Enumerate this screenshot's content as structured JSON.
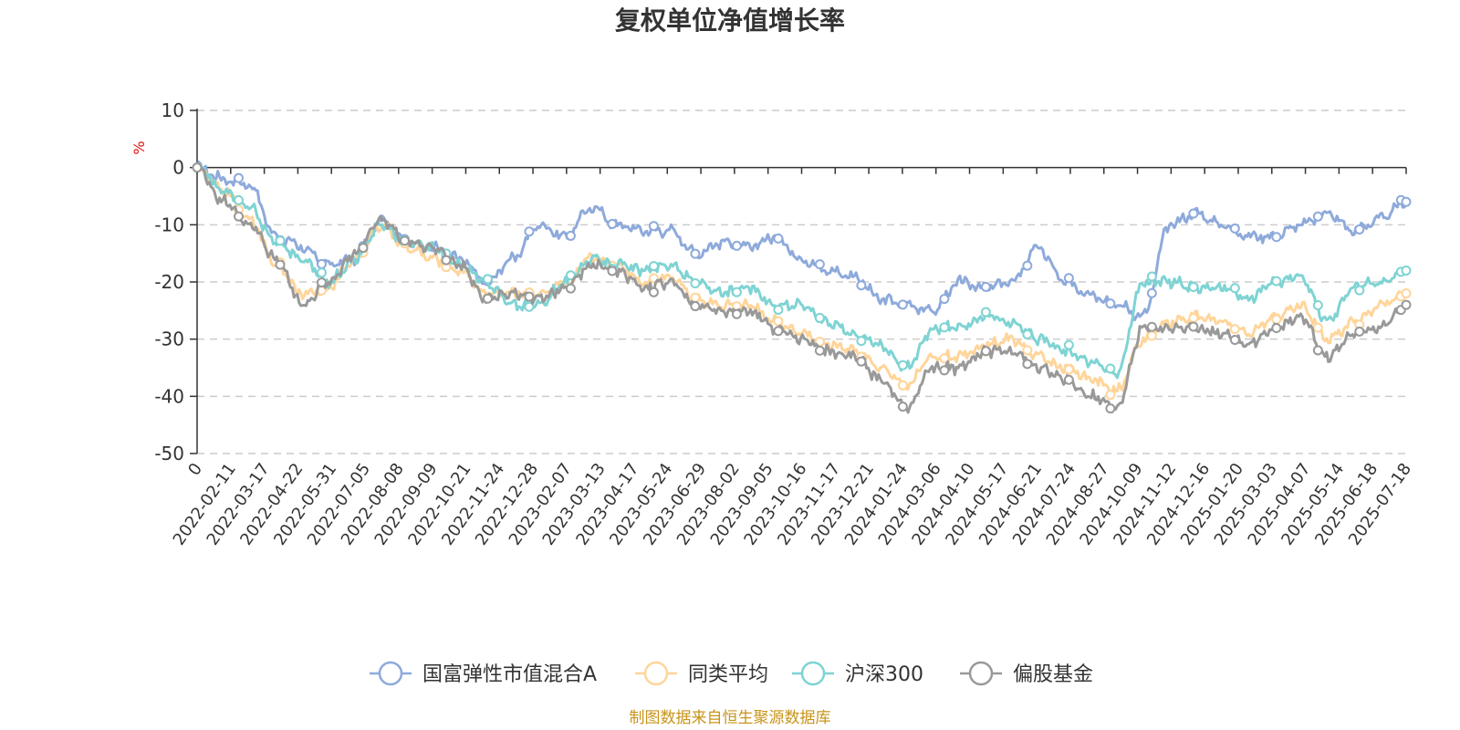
{
  "chart_data": {
    "type": "line",
    "title": "复权单位净值增长率",
    "ylabel": "%",
    "ylim": [
      -50,
      10
    ],
    "yticks": [
      10,
      0,
      -10,
      -20,
      -30,
      -40,
      -50
    ],
    "grid": true,
    "legend_position": "bottom-center",
    "x_tick_labels": [
      "0",
      "2022-02-11",
      "2022-03-17",
      "2022-04-22",
      "2022-05-31",
      "2022-07-05",
      "2022-08-08",
      "2022-09-09",
      "2022-10-21",
      "2022-11-24",
      "2022-12-28",
      "2023-02-07",
      "2023-03-13",
      "2023-04-17",
      "2023-05-24",
      "2023-06-29",
      "2023-08-02",
      "2023-09-05",
      "2023-10-16",
      "2023-11-17",
      "2023-12-21",
      "2024-01-24",
      "2024-03-06",
      "2024-04-10",
      "2024-05-17",
      "2024-06-21",
      "2024-07-24",
      "2024-08-27",
      "2024-10-09",
      "2024-11-12",
      "2024-12-16",
      "2025-01-20",
      "2025-03-03",
      "2025-04-07",
      "2025-05-14",
      "2025-06-18",
      "2025-07-18"
    ],
    "series": [
      {
        "name": "国富弹性市值混合A",
        "color": "#8eaadb",
        "values": [
          0,
          -2,
          -3,
          -12,
          -14,
          -17,
          -16,
          -9,
          -13,
          -14,
          -16,
          -20,
          -16,
          -10,
          -12,
          -7,
          -10,
          -11,
          -11,
          -15,
          -13,
          -14,
          -12,
          -16,
          -18,
          -19,
          -23,
          -24,
          -25,
          -20,
          -21,
          -20,
          -14,
          -20,
          -22,
          -24,
          -26,
          -10,
          -8,
          -10,
          -12,
          -12,
          -10,
          -8,
          -11,
          -9,
          -6
        ]
      },
      {
        "name": "同类平均",
        "color": "#ffd59a",
        "values": [
          0,
          -4,
          -9,
          -17,
          -22,
          -21,
          -16,
          -10,
          -14,
          -16,
          -18,
          -22,
          -22,
          -22,
          -20,
          -16,
          -17,
          -20,
          -19,
          -23,
          -24,
          -24,
          -27,
          -29,
          -31,
          -32,
          -35,
          -38,
          -33,
          -33,
          -31,
          -30,
          -33,
          -35,
          -37,
          -39,
          -30,
          -27,
          -26,
          -27,
          -29,
          -26,
          -24,
          -30,
          -27,
          -24,
          -22
        ]
      },
      {
        "name": "沪深300",
        "color": "#7fd3d3",
        "values": [
          0,
          -4,
          -7,
          -13,
          -16,
          -20,
          -16,
          -10,
          -13,
          -14,
          -17,
          -20,
          -24,
          -24,
          -20,
          -16,
          -17,
          -18,
          -17,
          -20,
          -22,
          -21,
          -24,
          -24,
          -27,
          -29,
          -31,
          -35,
          -28,
          -28,
          -26,
          -27,
          -30,
          -32,
          -34,
          -36,
          -20,
          -20,
          -21,
          -21,
          -23,
          -20,
          -19,
          -27,
          -21,
          -20,
          -18
        ]
      },
      {
        "name": "偏股基金",
        "color": "#999999",
        "values": [
          0,
          -6,
          -10,
          -16,
          -24,
          -20,
          -15,
          -9,
          -13,
          -14,
          -17,
          -23,
          -22,
          -23,
          -21,
          -17,
          -18,
          -21,
          -20,
          -24,
          -25,
          -25,
          -28,
          -30,
          -32,
          -33,
          -37,
          -42,
          -35,
          -35,
          -32,
          -32,
          -35,
          -37,
          -40,
          -42,
          -28,
          -28,
          -28,
          -29,
          -31,
          -28,
          -26,
          -33,
          -29,
          -28,
          -24
        ]
      }
    ]
  },
  "source_note": "制图数据来自恒生聚源数据库"
}
